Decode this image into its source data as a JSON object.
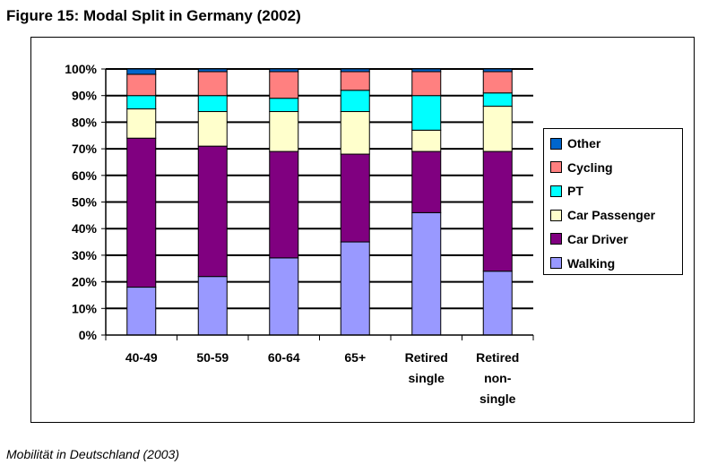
{
  "figure_title": "Figure 15: Modal Split in Germany (2002)",
  "caption": "Mobilität in Deutschland (2003)",
  "colors": {
    "Walking": "#9999FF",
    "Car Driver": "#800080",
    "Car Passenger": "#FFFFCC",
    "PT": "#00FFFF",
    "Cycling": "#FF8080",
    "Other": "#0066CC"
  },
  "chart_data": {
    "type": "bar",
    "stacked": true,
    "title": "",
    "xlabel": "",
    "ylabel": "",
    "ylim": [
      0,
      100
    ],
    "y_tick_labels": [
      "0%",
      "10%",
      "20%",
      "30%",
      "40%",
      "50%",
      "60%",
      "70%",
      "80%",
      "90%",
      "100%"
    ],
    "grid": true,
    "legend_position": "right",
    "categories": [
      "40-49",
      "50-59",
      "60-64",
      "65+",
      "Retired single",
      "Retired non-single"
    ],
    "category_label_lines": [
      [
        "40-49"
      ],
      [
        "50-59"
      ],
      [
        "60-64"
      ],
      [
        "65+"
      ],
      [
        "Retired",
        "single"
      ],
      [
        "Retired",
        "non-",
        "single"
      ]
    ],
    "series": [
      {
        "name": "Walking",
        "values": [
          18,
          22,
          29,
          35,
          46,
          24
        ]
      },
      {
        "name": "Car Driver",
        "values": [
          56,
          49,
          40,
          33,
          23,
          45
        ]
      },
      {
        "name": "Car Passenger",
        "values": [
          11,
          13,
          15,
          16,
          8,
          17
        ]
      },
      {
        "name": "PT",
        "values": [
          5,
          6,
          5,
          8,
          13,
          5
        ]
      },
      {
        "name": "Cycling",
        "values": [
          8,
          9,
          10,
          7,
          9,
          8
        ]
      },
      {
        "name": "Other",
        "values": [
          2,
          1,
          1,
          1,
          1,
          1
        ]
      }
    ],
    "legend_order": [
      "Other",
      "Cycling",
      "PT",
      "Car Passenger",
      "Car Driver",
      "Walking"
    ]
  }
}
